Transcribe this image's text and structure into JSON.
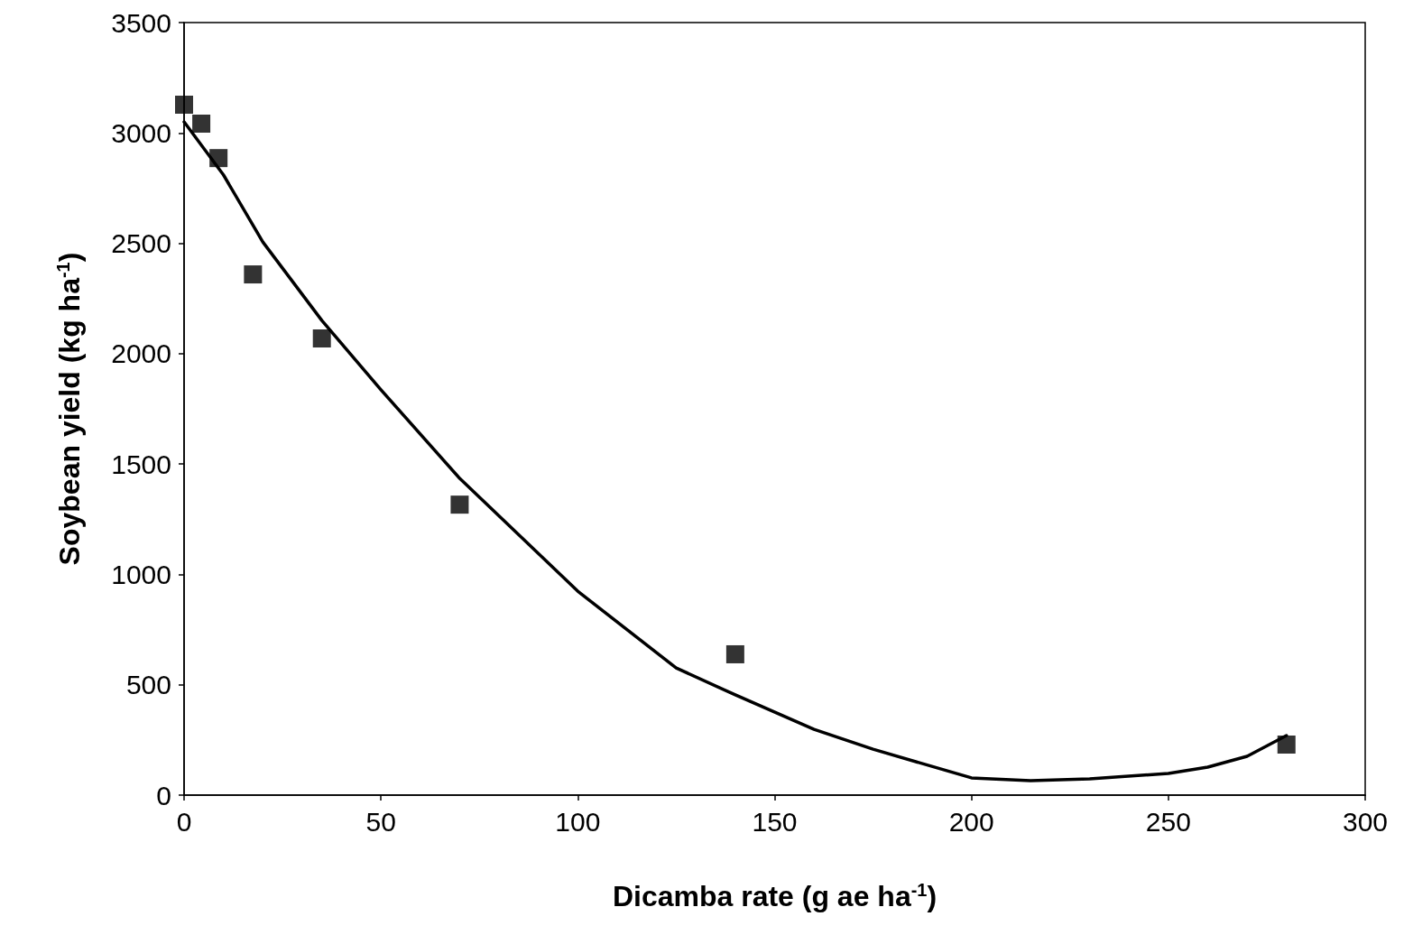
{
  "chart_data": {
    "type": "scatter",
    "xlabel": "Dicamba rate (g ae ha$^{-1}$)",
    "ylabel": "Soybean yield (kg ha$^{-1}$)",
    "xlim": [
      0,
      300
    ],
    "xticks": [
      0,
      50,
      100,
      150,
      200,
      250,
      300
    ],
    "ylim": [
      0,
      3500
    ],
    "yticks": [
      0,
      500,
      1000,
      1500,
      2000,
      2500,
      3000,
      3500
    ],
    "grid": false,
    "series": [
      {
        "color": "#000000",
        "marker": "square",
        "x": [
          0,
          4.375,
          8.75,
          17.5,
          35,
          70,
          140,
          280
        ],
        "values": [
          3128,
          3042,
          2886,
          2359,
          2069,
          1316,
          638,
          229
        ]
      },
      {
        "type": "line",
        "color": "#000000",
        "marker": "none",
        "line_style": "solid",
        "x": [
          0,
          10,
          20,
          35,
          50,
          70,
          100,
          125,
          140,
          160,
          175,
          200,
          215,
          230,
          250,
          260,
          270,
          280
        ],
        "values": [
          3050,
          2810,
          2506,
          2150,
          1836,
          1435,
          924,
          576,
          454,
          298,
          208,
          78,
          65,
          74,
          98,
          127,
          176,
          270
        ]
      }
    ]
  }
}
